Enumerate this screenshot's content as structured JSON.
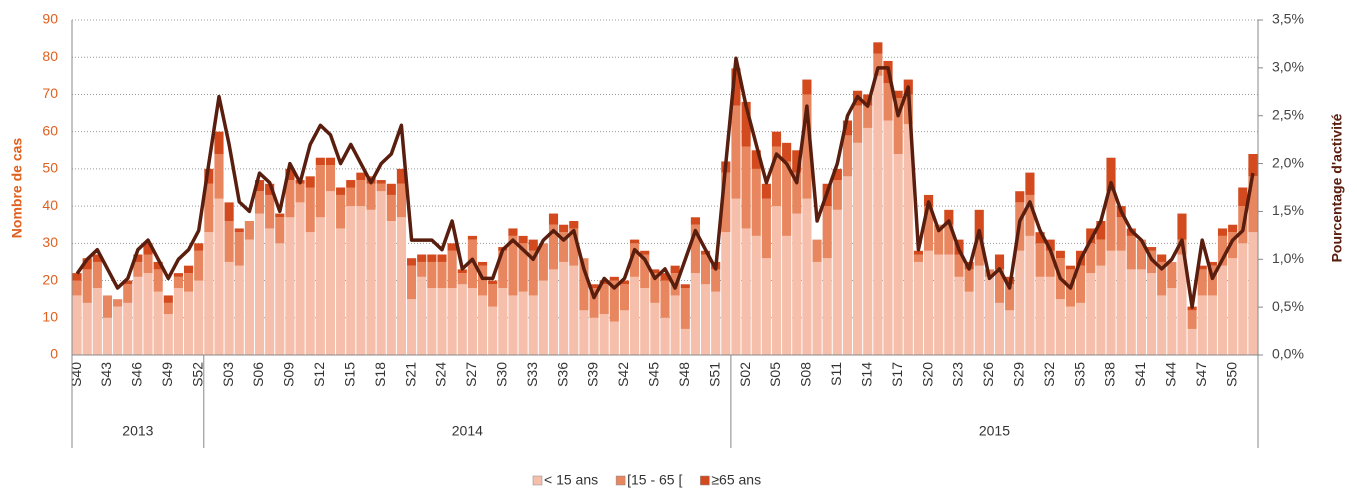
{
  "chart_data": {
    "type": "bar",
    "stacked": true,
    "ylabel": "Nombre de cas",
    "y2label": "Pourcentage d'activité",
    "ylim": [
      0,
      90
    ],
    "yticks": [
      0,
      10,
      20,
      30,
      40,
      50,
      60,
      70,
      80,
      90
    ],
    "y2lim": [
      0,
      3.5
    ],
    "y2ticks": [
      {
        "value": 0,
        "label": "0,0%"
      },
      {
        "value": 0.5,
        "label": "0,5%"
      },
      {
        "value": 1,
        "label": "1,0%"
      },
      {
        "value": 1.5,
        "label": "1,5%"
      },
      {
        "value": 2,
        "label": "2,0%"
      },
      {
        "value": 2.5,
        "label": "2,5%"
      },
      {
        "value": 3,
        "label": "3,0%"
      },
      {
        "value": 3.5,
        "label": "3,5%"
      }
    ],
    "grid": true,
    "legend": "bottom",
    "groups": [
      {
        "label": "2013",
        "count": 13
      },
      {
        "label": "2014",
        "count": 52
      },
      {
        "label": "2015",
        "count": 52
      }
    ],
    "categories": [
      "S40",
      null,
      null,
      "S43",
      null,
      null,
      "S46",
      null,
      null,
      "S49",
      null,
      null,
      "S52",
      null,
      null,
      "S03",
      null,
      null,
      "S06",
      null,
      null,
      "S09",
      null,
      null,
      "S12",
      null,
      null,
      "S15",
      null,
      null,
      "S18",
      null,
      null,
      "S21",
      null,
      null,
      "S24",
      null,
      null,
      "S27",
      null,
      null,
      "S30",
      null,
      null,
      "S33",
      null,
      null,
      "S36",
      null,
      null,
      "S39",
      null,
      null,
      "S42",
      null,
      null,
      "S45",
      null,
      null,
      "S48",
      null,
      null,
      "S51",
      null,
      null,
      "S02",
      null,
      null,
      "S05",
      null,
      null,
      "S08",
      null,
      null,
      "S11",
      null,
      null,
      "S14",
      null,
      null,
      "S17",
      null,
      null,
      "S20",
      null,
      null,
      "S23",
      null,
      null,
      "S26",
      null,
      null,
      "S29",
      null,
      null,
      "S32",
      null,
      null,
      "S35",
      null,
      null,
      "S38",
      null,
      null,
      "S41",
      null,
      null,
      "S44",
      null,
      null,
      "S47",
      null,
      null,
      "S50",
      null,
      null
    ],
    "series": [
      {
        "name": "< 15 ans",
        "color": "#f5bfac",
        "values": [
          16,
          14,
          18,
          10,
          13,
          14,
          21,
          22,
          17,
          11,
          18,
          17,
          20,
          33,
          42,
          25,
          24,
          31,
          38,
          34,
          30,
          37,
          41,
          33,
          37,
          44,
          34,
          40,
          40,
          39,
          44,
          36,
          37,
          15,
          21,
          18,
          18,
          18,
          19,
          18,
          16,
          13,
          18,
          16,
          17,
          16,
          20,
          23,
          25,
          24,
          12,
          10,
          11,
          9,
          12,
          21,
          18,
          14,
          10,
          16,
          7,
          22,
          19,
          17,
          33,
          42,
          34,
          32,
          26,
          40,
          32,
          38,
          42,
          25,
          26,
          39,
          48,
          57,
          61,
          75,
          63,
          54,
          62,
          25,
          28,
          27,
          27,
          21,
          17,
          24,
          21,
          14,
          12,
          28,
          32,
          21,
          21,
          15,
          13,
          14,
          22,
          24,
          28,
          28,
          23,
          23,
          22,
          16,
          18,
          27,
          7,
          16,
          16,
          24,
          26,
          30,
          33
        ]
      },
      {
        "name": "[15 - 65 [",
        "color": "#e8875f",
        "values": [
          4,
          9,
          7,
          6,
          2,
          5,
          4,
          5,
          6,
          3,
          3,
          5,
          8,
          13,
          12,
          11,
          9,
          5,
          6,
          9,
          7,
          10,
          5,
          12,
          14,
          7,
          9,
          5,
          7,
          7,
          2,
          7,
          9,
          9,
          4,
          7,
          7,
          10,
          3,
          13,
          8,
          6,
          10,
          16,
          13,
          12,
          10,
          12,
          8,
          10,
          14,
          8,
          8,
          11,
          7,
          9,
          9,
          8,
          10,
          6,
          11,
          13,
          8,
          6,
          16,
          25,
          22,
          18,
          16,
          16,
          20,
          11,
          28,
          6,
          14,
          8,
          11,
          10,
          6,
          6,
          10,
          15,
          8,
          2,
          12,
          8,
          8,
          6,
          6,
          7,
          2,
          9,
          7,
          13,
          11,
          9,
          7,
          11,
          10,
          10,
          8,
          7,
          16,
          9,
          9,
          8,
          6,
          9,
          7,
          4,
          5,
          7,
          8,
          8,
          7,
          10,
          15
        ]
      },
      {
        "name": "≥65 ans",
        "color": "#d24a1e",
        "values": [
          2,
          3,
          2,
          0,
          0,
          1,
          2,
          3,
          2,
          2,
          1,
          2,
          2,
          4,
          6,
          5,
          1,
          0,
          3,
          3,
          1,
          3,
          1,
          3,
          2,
          2,
          2,
          2,
          2,
          2,
          1,
          3,
          4,
          2,
          2,
          2,
          2,
          2,
          1,
          1,
          1,
          1,
          1,
          2,
          2,
          3,
          0,
          3,
          2,
          2,
          0,
          1,
          1,
          1,
          1,
          1,
          1,
          1,
          2,
          2,
          1,
          2,
          1,
          2,
          3,
          10,
          12,
          5,
          4,
          4,
          5,
          6,
          4,
          0,
          6,
          3,
          4,
          4,
          3,
          3,
          6,
          2,
          4,
          1,
          3,
          0,
          4,
          4,
          2,
          8,
          0,
          4,
          2,
          3,
          6,
          3,
          3,
          2,
          1,
          4,
          4,
          5,
          9,
          3,
          2,
          0,
          1,
          2,
          0,
          7,
          1,
          1,
          1,
          2,
          2,
          5,
          6
        ]
      },
      {
        "type": "line",
        "axis": "y2",
        "color": "#5a1e0f",
        "values": [
          0.85,
          1.0,
          1.1,
          0.9,
          0.7,
          0.8,
          1.1,
          1.2,
          1.0,
          0.8,
          1.0,
          1.1,
          1.3,
          2.0,
          2.7,
          2.2,
          1.6,
          1.5,
          1.9,
          1.8,
          1.5,
          2.0,
          1.8,
          2.2,
          2.4,
          2.3,
          2.0,
          2.2,
          2.0,
          1.8,
          2.0,
          2.1,
          2.4,
          1.2,
          1.2,
          1.2,
          1.1,
          1.4,
          0.9,
          1.0,
          0.8,
          0.8,
          1.1,
          1.2,
          1.1,
          1.0,
          1.2,
          1.3,
          1.2,
          1.3,
          0.9,
          0.6,
          0.8,
          0.7,
          0.8,
          1.1,
          1.0,
          0.8,
          0.9,
          0.7,
          1.0,
          1.3,
          1.1,
          0.9,
          2.0,
          3.1,
          2.6,
          2.2,
          1.8,
          2.1,
          2.0,
          1.8,
          2.6,
          1.4,
          1.7,
          2.0,
          2.5,
          2.7,
          2.6,
          3.0,
          3.0,
          2.5,
          2.8,
          1.1,
          1.6,
          1.3,
          1.4,
          1.1,
          0.9,
          1.3,
          0.8,
          0.9,
          0.7,
          1.4,
          1.6,
          1.3,
          1.1,
          0.8,
          0.7,
          1.0,
          1.2,
          1.4,
          1.8,
          1.5,
          1.3,
          1.2,
          1.0,
          0.9,
          1.0,
          1.2,
          0.5,
          1.2,
          0.8,
          1.0,
          1.2,
          1.3,
          1.9
        ]
      }
    ]
  }
}
